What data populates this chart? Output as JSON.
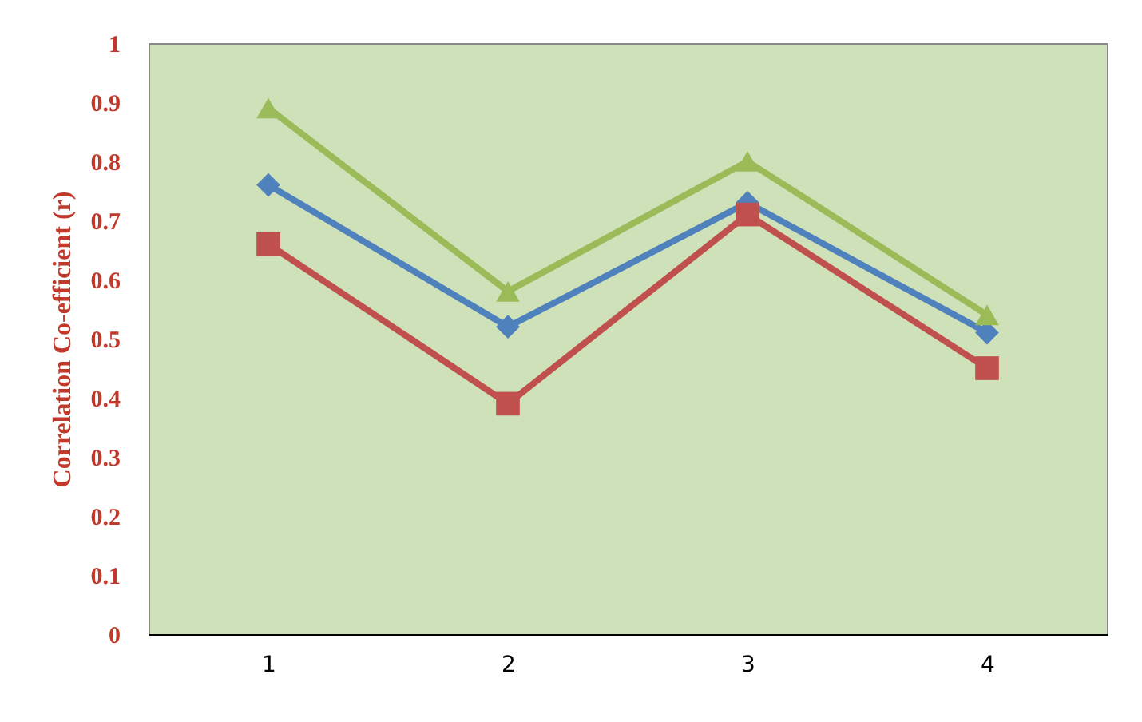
{
  "chart_data": {
    "type": "line",
    "ylabel": "Correlation Co-efficient (r)",
    "categories": [
      "1",
      "2",
      "3",
      "4"
    ],
    "series": [
      {
        "color": "#4f81bd",
        "marker": "diamond",
        "values": [
          0.76,
          0.52,
          0.73,
          0.51
        ]
      },
      {
        "color": "#c0504d",
        "marker": "square",
        "values": [
          0.66,
          0.39,
          0.71,
          0.45
        ]
      },
      {
        "color": "#9bbb59",
        "marker": "triangle",
        "values": [
          0.89,
          0.58,
          0.8,
          0.54
        ]
      }
    ],
    "ylim": [
      0,
      1
    ],
    "yticks": [
      0,
      0.1,
      0.2,
      0.3,
      0.4,
      0.5,
      0.6,
      0.7,
      0.8,
      0.9,
      1
    ],
    "grid": false,
    "line_style": "solid"
  }
}
